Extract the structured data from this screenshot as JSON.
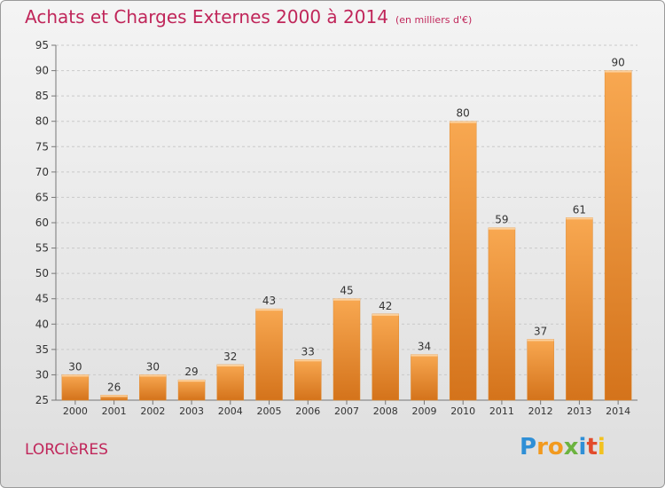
{
  "header": {
    "title": "Achats et Charges Externes 2000 à 2014",
    "subtitle": "(en milliers d'€)"
  },
  "footer": {
    "city": "LORCIèRES",
    "logo_text": "Proxiti"
  },
  "colors": {
    "accent": "#c0265a",
    "bar_light": "#f6a24a",
    "bar_dark": "#d6761e",
    "grid": "#c8c8c8"
  },
  "chart_data": {
    "type": "bar",
    "title": "Achats et Charges Externes 2000 à 2014",
    "subtitle": "(en milliers d'€)",
    "xlabel": "",
    "ylabel": "",
    "categories": [
      "2000",
      "2001",
      "2002",
      "2003",
      "2004",
      "2005",
      "2006",
      "2007",
      "2008",
      "2009",
      "2010",
      "2011",
      "2012",
      "2013",
      "2014"
    ],
    "values": [
      30,
      26,
      30,
      29,
      32,
      43,
      33,
      45,
      42,
      34,
      80,
      59,
      37,
      61,
      90
    ],
    "ylim": [
      25,
      95
    ],
    "yticks": [
      25,
      30,
      35,
      40,
      45,
      50,
      55,
      60,
      65,
      70,
      75,
      80,
      85,
      90,
      95
    ],
    "grid": true,
    "legend": "none"
  }
}
